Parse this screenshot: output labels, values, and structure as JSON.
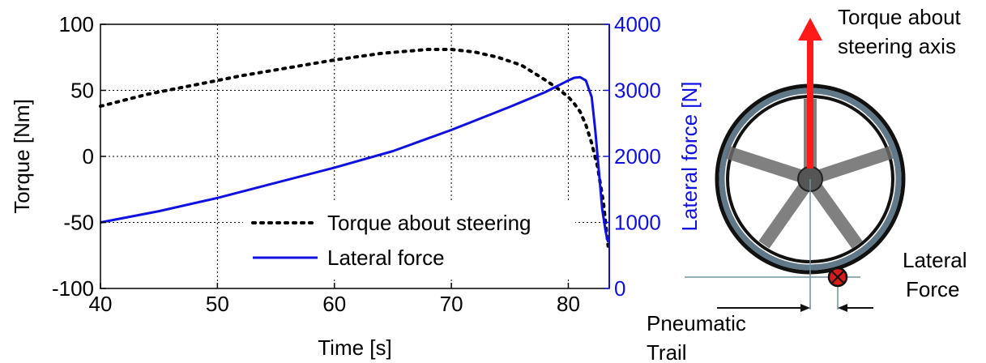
{
  "chart_data": {
    "type": "line",
    "xlabel": "Time [s]",
    "ylabel_left": "Torque [Nm]",
    "ylabel_right": "Lateral force [N]",
    "xlim": [
      40,
      83.5
    ],
    "ylim_left": [
      -100,
      100
    ],
    "ylim_right": [
      0,
      4000
    ],
    "x_ticks": [
      "40",
      "50",
      "60",
      "70",
      "80"
    ],
    "y_left_ticks": [
      "-100",
      "-50",
      "0",
      "50",
      "100"
    ],
    "y_right_ticks": [
      "0",
      "1000",
      "2000",
      "3000",
      "4000"
    ],
    "grid": true,
    "legend_position": "lower-right",
    "colors": {
      "torque": "#000000",
      "lateral": "#1010e0",
      "right_axis": "#1010e0"
    },
    "series": [
      {
        "name": "Torque about steering",
        "axis": "left",
        "style": "dotted",
        "x": [
          40,
          44,
          48,
          52,
          56,
          60,
          64,
          68,
          70,
          72,
          74,
          76,
          78,
          79,
          80,
          80.5,
          81,
          81.5,
          82,
          82.5,
          83,
          83.4
        ],
        "y": [
          38,
          47,
          54,
          61,
          67,
          73,
          78,
          81,
          81,
          79,
          75,
          69,
          58,
          52,
          45,
          40,
          34,
          24,
          10,
          -8,
          -35,
          -68
        ]
      },
      {
        "name": "Lateral force",
        "axis": "right",
        "style": "solid",
        "x": [
          40,
          45,
          50,
          55,
          60,
          65,
          70,
          75,
          78,
          80,
          80.5,
          81,
          81.5,
          82,
          82.3,
          82.6,
          82.9,
          83.2,
          83.4
        ],
        "y": [
          1000,
          1170,
          1370,
          1600,
          1830,
          2080,
          2400,
          2750,
          2970,
          3150,
          3190,
          3200,
          3150,
          2900,
          2400,
          1800,
          1200,
          850,
          700
        ]
      }
    ]
  },
  "diagram": {
    "torque_label_line1": "Torque about",
    "torque_label_line2": "steering axis",
    "lateral_label_line1": "Lateral",
    "lateral_label_line2": "Force",
    "trail_label_line1": "Pneumatic",
    "trail_label_line2": "Trail",
    "colors": {
      "tire": "#607888",
      "arrow": "#ff1a1a",
      "force_marker": "#d81b1b",
      "spokes": "#666666"
    }
  }
}
